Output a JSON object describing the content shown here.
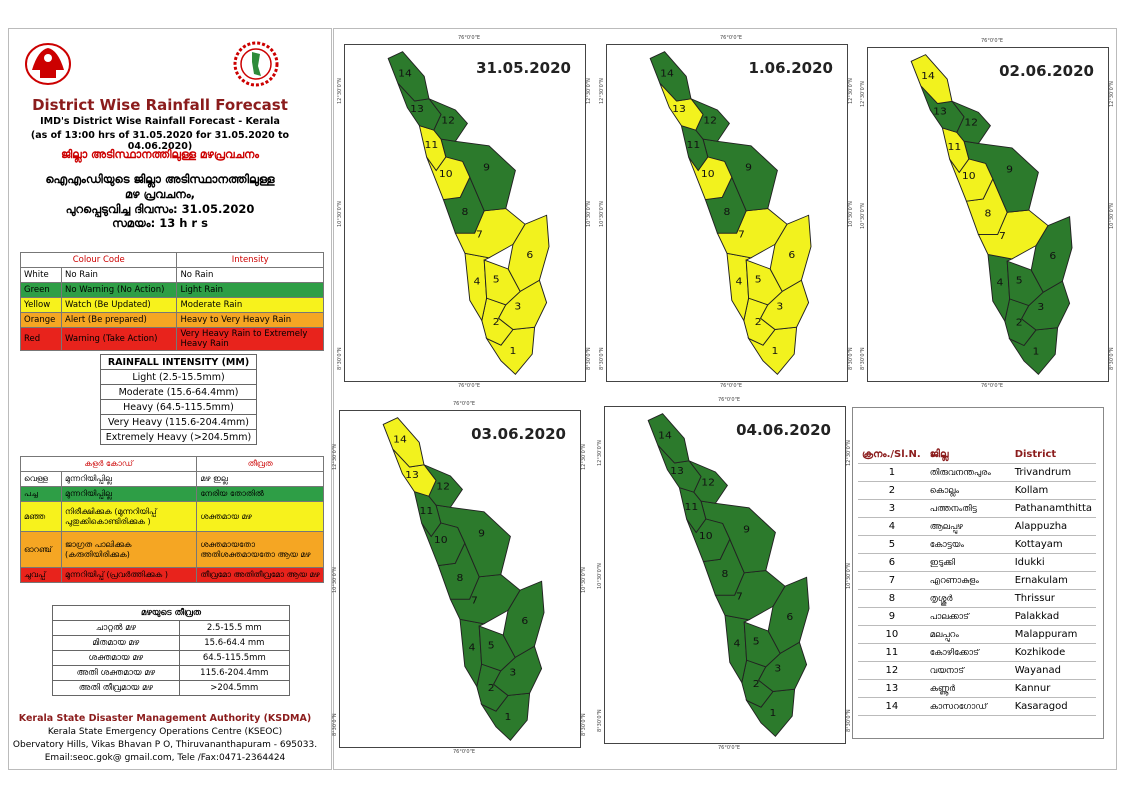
{
  "header": {
    "title": "District Wise Rainfall Forecast",
    "subtitle1": "IMD's District Wise Rainfall Forecast - Kerala",
    "subtitle2": "(as of 13:00 hrs of 31.05.2020  for 31.05.2020  to 04.06.2020)",
    "ml_title": "ജില്ലാ അടിസ്ഥാനത്തിലുള്ള മഴപ്രവചനം",
    "ml_line1": "ഐഎംഡിയുടെ ജില്ലാ  അടിസ്ഥാനത്തിലുള്ള",
    "ml_line2": "മഴ പ്രവചനം,",
    "ml_line3": "പുറപ്പെടുവിച്ച  ദിവസം: 31.05.2020",
    "ml_line4": "സമയം: 13 h r s"
  },
  "colour_code": {
    "header": {
      "col1": "Colour Code",
      "col2": "Intensity"
    },
    "rows": [
      {
        "colour": "White",
        "meaning": "No Rain",
        "intensity": "No Rain",
        "bg": "#ffffff"
      },
      {
        "colour": "Green",
        "meaning": "No Warning (No Action)",
        "intensity": "Light Rain",
        "bg": "#2E9E46"
      },
      {
        "colour": "Yellow",
        "meaning": "Watch (Be Updated)",
        "intensity": "Moderate Rain",
        "bg": "#F7F21C"
      },
      {
        "colour": "Orange",
        "meaning": "Alert (Be prepared)",
        "intensity": "Heavy to Very Heavy Rain",
        "bg": "#F5A623"
      },
      {
        "colour": "Red",
        "meaning": "Warning (Take Action)",
        "intensity": "Very Heavy Rain to Extremely Heavy Rain",
        "bg": "#E8231C"
      }
    ]
  },
  "rainfall_intensity": {
    "title": "RAINFALL INTENSITY (MM)",
    "rows": [
      "Light (2.5-15.5mm)",
      "Moderate (15.6-64.4mm)",
      "Heavy (64.5-115.5mm)",
      "Very Heavy (115.6-204.4mm)",
      "Extremely Heavy (>204.5mm)"
    ]
  },
  "ml_colour_code": {
    "header": {
      "col1": "കളർ കോഡ്",
      "col2": "തീവ്രത"
    },
    "rows": [
      {
        "colour": "വെള്ള",
        "meaning": "മുന്നറിയിപ്പില്ല",
        "intensity": "മഴ ഇല്ല",
        "bg": "#ffffff"
      },
      {
        "colour": "പച്ച",
        "meaning": "മുന്നറിയിപ്പില്ല",
        "intensity": "നേരിയ തോതിൽ",
        "bg": "#2E9E46"
      },
      {
        "colour": "മഞ്ഞ",
        "meaning": "നിരീക്ഷിക്കുക (മുന്നറിയിപ്പ് പുതുക്കികൊണ്ടിരിക്കുക )",
        "intensity": "ശക്തമായ മഴ",
        "bg": "#F7F21C"
      },
      {
        "colour": "ഓറഞ്ച്",
        "meaning": "ജാഗ്രത പാലിക്കുക (കരുതിയിരിക്കുക)",
        "intensity": "ശക്തമായതോ അതിശക്തമായതോ ആയ മഴ",
        "bg": "#F5A623"
      },
      {
        "colour": "ചുവപ്പ്",
        "meaning": "മുന്നറിയിപ്പ് (പ്രവർത്തിക്കുക )",
        "intensity": "തീവ്രമോ അതിതീവ്രമോ ആയ മഴ",
        "bg": "#E8231C"
      }
    ]
  },
  "ml_intensity": {
    "title": "മഴയുടെ  തീവ്രത",
    "rows": [
      {
        "label": "ചാറ്റൽ  മഴ",
        "value": "2.5-15.5 mm"
      },
      {
        "label": "മിതമായ  മഴ",
        "value": "15.6-64.4 mm"
      },
      {
        "label": "ശക്തമായ  മഴ",
        "value": "64.5-115.5mm"
      },
      {
        "label": "അതി  ശക്തമായ  മഴ",
        "value": "115.6-204.4mm"
      },
      {
        "label": "അതി  തീവ്രമായ  മഴ",
        "value": ">204.5mm"
      }
    ]
  },
  "footer": {
    "org": "Kerala State Disaster Management Authority (KSDMA)",
    "centre": "Kerala State Emergency Operations Centre (KSEOC)",
    "address": "Obervatory Hills, Vikas Bhavan P O, Thiruvananthapuram - 695033.",
    "contact": "Email:seoc.gok@ gmail.com, Tele /Fax:0471-2364424"
  },
  "maps": [
    {
      "date": "31.05.2020",
      "colors": {
        "1": "Y",
        "2": "Y",
        "3": "Y",
        "4": "Y",
        "5": "Y",
        "6": "Y",
        "7": "Y",
        "8": "G",
        "9": "G",
        "10": "Y",
        "11": "Y",
        "12": "G",
        "13": "G",
        "14": "G"
      }
    },
    {
      "date": "1.06.2020",
      "colors": {
        "1": "Y",
        "2": "Y",
        "3": "Y",
        "4": "Y",
        "5": "Y",
        "6": "Y",
        "7": "Y",
        "8": "G",
        "9": "G",
        "10": "Y",
        "11": "G",
        "12": "G",
        "13": "Y",
        "14": "G"
      }
    },
    {
      "date": "02.06.2020",
      "colors": {
        "1": "G",
        "2": "G",
        "3": "G",
        "4": "G",
        "5": "G",
        "6": "G",
        "7": "Y",
        "8": "Y",
        "9": "G",
        "10": "Y",
        "11": "Y",
        "12": "G",
        "13": "G",
        "14": "Y"
      }
    },
    {
      "date": "03.06.2020",
      "colors": {
        "1": "G",
        "2": "G",
        "3": "G",
        "4": "G",
        "5": "G",
        "6": "G",
        "7": "G",
        "8": "G",
        "9": "G",
        "10": "G",
        "11": "G",
        "12": "G",
        "13": "Y",
        "14": "Y"
      }
    },
    {
      "date": "04.06.2020",
      "colors": {
        "1": "G",
        "2": "G",
        "3": "G",
        "4": "G",
        "5": "G",
        "6": "G",
        "7": "G",
        "8": "G",
        "9": "G",
        "10": "G",
        "11": "G",
        "12": "G",
        "13": "G",
        "14": "G"
      }
    }
  ],
  "tick_labels": {
    "lon": "76°0'0\"E",
    "lat_top": "12°30'0\"N",
    "lat_mid": "10°30'0\"N",
    "lat_bot": "8°30'0\"N"
  },
  "district_table": {
    "headers": {
      "sl": "ക്രനം./Sl.N.",
      "ml": "ജില്ല",
      "en": "District"
    },
    "rows": [
      {
        "sl": "1",
        "ml": "തിരുവനന്തപുരം",
        "en": "Trivandrum"
      },
      {
        "sl": "2",
        "ml": "കൊല്ലം",
        "en": "Kollam"
      },
      {
        "sl": "3",
        "ml": "പത്തനംതിട്ട",
        "en": "Pathanamthitta"
      },
      {
        "sl": "4",
        "ml": "ആലപ്പുഴ",
        "en": "Alappuzha"
      },
      {
        "sl": "5",
        "ml": "കോട്ടയം",
        "en": "Kottayam"
      },
      {
        "sl": "6",
        "ml": "ഇടുക്കി",
        "en": "Idukki"
      },
      {
        "sl": "7",
        "ml": "എറണാകുളം",
        "en": "Ernakulam"
      },
      {
        "sl": "8",
        "ml": "തൃശ്ശൂർ",
        "en": "Thrissur"
      },
      {
        "sl": "9",
        "ml": "പാലക്കാട്",
        "en": "Palakkad"
      },
      {
        "sl": "10",
        "ml": "മലപ്പുറം",
        "en": "Malappuram"
      },
      {
        "sl": "11",
        "ml": "കോഴിക്കോട്",
        "en": "Kozhikode"
      },
      {
        "sl": "12",
        "ml": "വയനാട്",
        "en": "Wayanad"
      },
      {
        "sl": "13",
        "ml": "കണ്ണൂർ",
        "en": "Kannur"
      },
      {
        "sl": "14",
        "ml": "കാസറഗോഡ്",
        "en": "Kasaragod"
      }
    ]
  },
  "palette": {
    "G": "#2C7A2C",
    "Y": "#F2F21E",
    "border": "#222222"
  }
}
